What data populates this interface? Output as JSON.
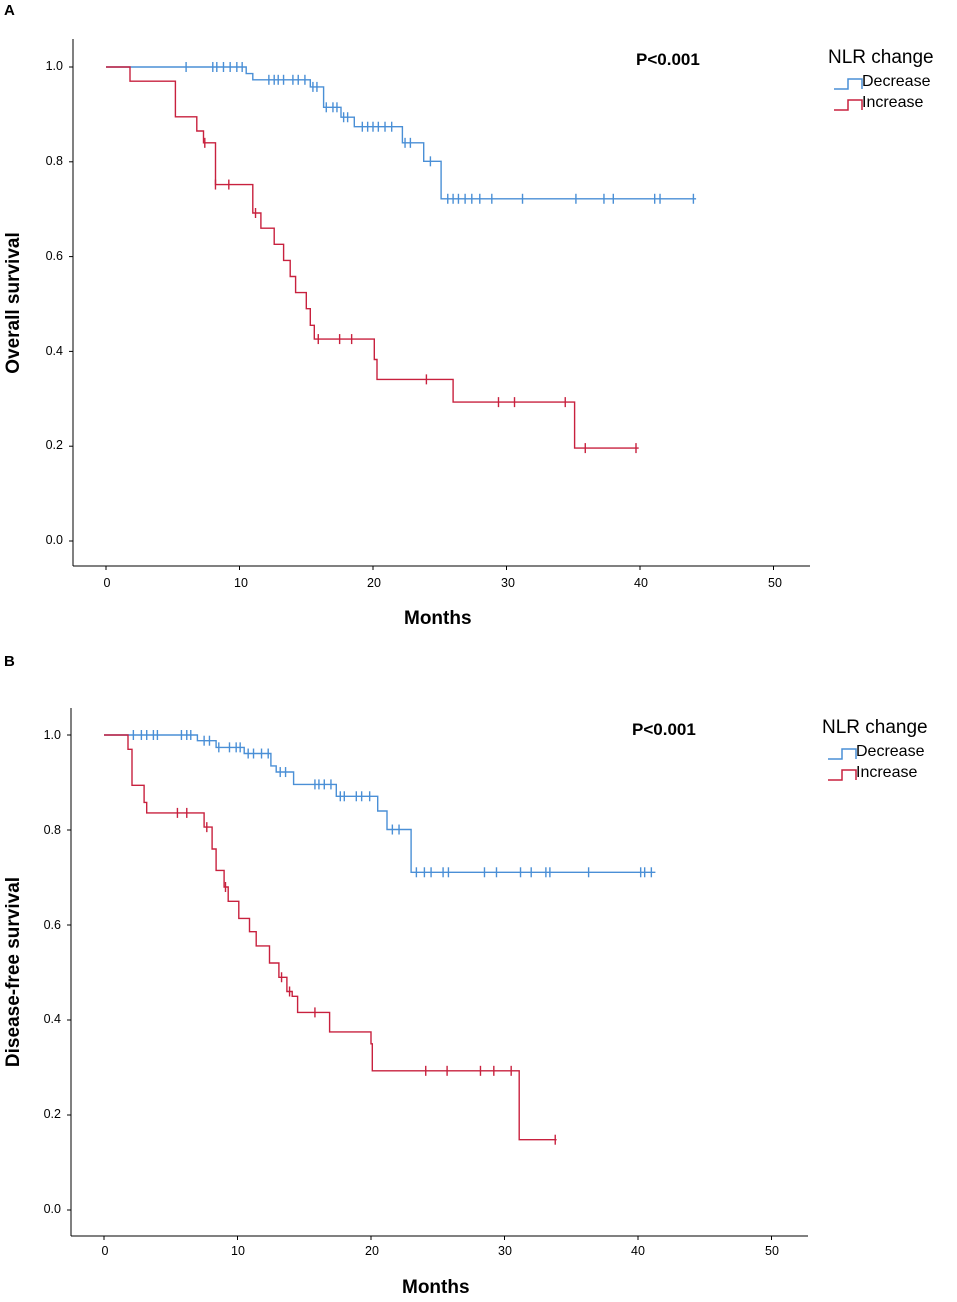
{
  "chart_data": [
    {
      "panel_label": "A",
      "type": "line",
      "subtype": "kaplan-meier step",
      "annotation": "P<0.001",
      "xlabel": "Months",
      "ylabel": "Overall survival",
      "xlim": [
        -2.5,
        53
      ],
      "ylim": [
        -0.05,
        1.07
      ],
      "xticks": [
        0,
        10,
        20,
        30,
        40,
        50
      ],
      "xtick_labels": [
        "0",
        "10",
        "20",
        "30",
        "40",
        "50"
      ],
      "yticks": [
        0.0,
        0.2,
        0.4,
        0.6,
        0.8,
        1.0
      ],
      "ytick_labels": [
        "0.0",
        "0.2",
        "0.4",
        "0.6",
        "0.8",
        "1.0"
      ],
      "legend": {
        "title": "NLR change",
        "position": "top-right"
      },
      "series": [
        {
          "name": "Decrease",
          "color": "#4a8fd6",
          "steps": [
            [
              0,
              1.0
            ],
            [
              10.5,
              0.986
            ],
            [
              11,
              0.973
            ],
            [
              15.3,
              0.958
            ],
            [
              16.3,
              0.915
            ],
            [
              17.6,
              0.894
            ],
            [
              18.6,
              0.874
            ],
            [
              22.2,
              0.84
            ],
            [
              23.8,
              0.801
            ],
            [
              25.1,
              0.722
            ],
            [
              44.2,
              0.722
            ]
          ],
          "censor_times": [
            6,
            8,
            8.3,
            8.8,
            9.3,
            9.8,
            10.2,
            12.2,
            12.6,
            12.9,
            13.3,
            14,
            14.4,
            14.9,
            15.5,
            15.8,
            16.5,
            17,
            17.3,
            17.8,
            18.1,
            19.2,
            19.6,
            20,
            20.4,
            20.9,
            21.4,
            22.4,
            22.8,
            24.3,
            25.6,
            26,
            26.4,
            26.9,
            27.4,
            28,
            28.9,
            31.2,
            35.2,
            37.3,
            38,
            41.1,
            41.5,
            44
          ]
        },
        {
          "name": "Increase",
          "color": "#c8213e",
          "steps": [
            [
              0,
              1.0
            ],
            [
              1.8,
              0.97
            ],
            [
              5.2,
              0.895
            ],
            [
              6.8,
              0.865
            ],
            [
              7.3,
              0.84
            ],
            [
              8.2,
              0.752
            ],
            [
              11,
              0.692
            ],
            [
              11.6,
              0.66
            ],
            [
              12.6,
              0.626
            ],
            [
              13.3,
              0.592
            ],
            [
              13.8,
              0.558
            ],
            [
              14.2,
              0.524
            ],
            [
              15,
              0.49
            ],
            [
              15.3,
              0.455
            ],
            [
              15.6,
              0.426
            ],
            [
              20.1,
              0.383
            ],
            [
              20.3,
              0.341
            ],
            [
              26,
              0.293
            ],
            [
              35.1,
              0.196
            ],
            [
              39.9,
              0.196
            ]
          ],
          "censor_times": [
            7.4,
            8.2,
            9.2,
            11.2,
            15.9,
            17.5,
            18.4,
            24,
            29.4,
            30.6,
            34.4,
            35.9,
            39.7
          ]
        }
      ]
    },
    {
      "panel_label": "B",
      "type": "line",
      "subtype": "kaplan-meier step",
      "annotation": "P<0.001",
      "xlabel": "Months",
      "ylabel": "Disease-free survival",
      "xlim": [
        -2.5,
        53
      ],
      "ylim": [
        -0.05,
        1.07
      ],
      "xticks": [
        0,
        10,
        20,
        30,
        40,
        50
      ],
      "xtick_labels": [
        "0",
        "10",
        "20",
        "30",
        "40",
        "50"
      ],
      "yticks": [
        0.0,
        0.2,
        0.4,
        0.6,
        0.8,
        1.0
      ],
      "ytick_labels": [
        "0.0",
        "0.2",
        "0.4",
        "0.6",
        "0.8",
        "1.0"
      ],
      "legend": {
        "title": "NLR change",
        "position": "top-right"
      },
      "series": [
        {
          "name": "Decrease",
          "color": "#4a8fd6",
          "steps": [
            [
              0,
              1.0
            ],
            [
              7,
              0.988
            ],
            [
              8.4,
              0.974
            ],
            [
              10.5,
              0.961
            ],
            [
              12.5,
              0.935
            ],
            [
              12.9,
              0.922
            ],
            [
              14.2,
              0.896
            ],
            [
              17.4,
              0.871
            ],
            [
              20.5,
              0.84
            ],
            [
              21.2,
              0.801
            ],
            [
              23,
              0.711
            ],
            [
              41.3,
              0.711
            ]
          ],
          "censor_times": [
            2.2,
            2.8,
            3.2,
            3.7,
            4,
            5.8,
            6.2,
            6.5,
            7.5,
            7.9,
            8.6,
            9.4,
            9.9,
            10.2,
            10.8,
            11.2,
            11.8,
            12.3,
            13.2,
            13.6,
            15.8,
            16.1,
            16.5,
            17,
            17.7,
            18,
            18.9,
            19.3,
            19.9,
            21.6,
            22.1,
            23.4,
            24,
            24.5,
            25.4,
            25.8,
            28.5,
            29.4,
            31.2,
            32,
            33.1,
            33.4,
            36.3,
            40.2,
            40.5,
            41
          ]
        },
        {
          "name": "Increase",
          "color": "#c8213e",
          "steps": [
            [
              0,
              1.0
            ],
            [
              1.8,
              0.97
            ],
            [
              2.1,
              0.894
            ],
            [
              3,
              0.858
            ],
            [
              3.2,
              0.836
            ],
            [
              7.5,
              0.806
            ],
            [
              8.1,
              0.76
            ],
            [
              8.4,
              0.715
            ],
            [
              9,
              0.68
            ],
            [
              9.3,
              0.65
            ],
            [
              10.1,
              0.614
            ],
            [
              10.9,
              0.586
            ],
            [
              11.4,
              0.556
            ],
            [
              12.4,
              0.52
            ],
            [
              13.1,
              0.49
            ],
            [
              13.7,
              0.46
            ],
            [
              14.1,
              0.45
            ],
            [
              14.5,
              0.416
            ],
            [
              16.9,
              0.375
            ],
            [
              20,
              0.35
            ],
            [
              20.1,
              0.293
            ],
            [
              30.9,
              0.293
            ],
            [
              31.1,
              0.148
            ],
            [
              33.9,
              0.148
            ]
          ],
          "censor_times": [
            5.5,
            6.2,
            7.7,
            9.1,
            13.3,
            13.9,
            15.8,
            24.1,
            25.7,
            28.2,
            29.2,
            30.5,
            33.8
          ]
        }
      ]
    }
  ]
}
